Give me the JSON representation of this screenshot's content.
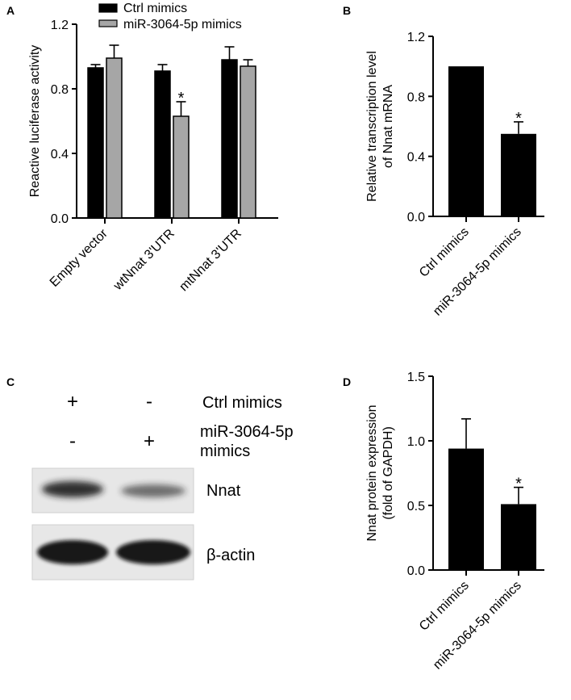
{
  "panels": {
    "A": {
      "label": "A"
    },
    "B": {
      "label": "B"
    },
    "C": {
      "label": "C"
    },
    "D": {
      "label": "D"
    }
  },
  "colors": {
    "ctrl": "#000000",
    "mimic": "#a6a6a6",
    "axis": "#000000"
  },
  "chart_data": [
    {
      "panel": "A",
      "type": "bar",
      "ylabel": "Reactive luciferase activity",
      "ylim": [
        0,
        1.2
      ],
      "yticks": [
        "0.0",
        "0.4",
        "0.8",
        "1.2"
      ],
      "categories": [
        "Empty vector",
        "wtNnat 3'UTR",
        "mtNnat 3'UTR"
      ],
      "legend_position": "top",
      "series": [
        {
          "name": "Ctrl mimics",
          "color": "#000000",
          "values": [
            0.93,
            0.91,
            0.98
          ],
          "errors": [
            0.02,
            0.04,
            0.08
          ]
        },
        {
          "name": "miR-3064-5p mimics",
          "color": "#a6a6a6",
          "values": [
            0.99,
            0.63,
            0.94
          ],
          "errors": [
            0.08,
            0.09,
            0.04
          ]
        }
      ],
      "annotations": [
        {
          "text": "*",
          "category": "wtNnat 3'UTR",
          "series": 1
        }
      ]
    },
    {
      "panel": "B",
      "type": "bar",
      "ylabel": [
        "Relative transcription level",
        "of Nnat mRNA"
      ],
      "ylim": [
        0,
        1.2
      ],
      "yticks": [
        "0.0",
        "0.4",
        "0.8",
        "1.2"
      ],
      "categories": [
        "Ctrl mimics",
        "miR-3064-5p mimics"
      ],
      "values": [
        1.0,
        0.55
      ],
      "errors": [
        0,
        0.08
      ],
      "annotations": [
        {
          "text": "*",
          "category": "miR-3064-5p mimics"
        }
      ]
    },
    {
      "panel": "D",
      "type": "bar",
      "ylabel": [
        "Nnat protein expression",
        "(fold of GAPDH)"
      ],
      "ylim": [
        0,
        1.5
      ],
      "yticks": [
        "0.0",
        "0.5",
        "1.0",
        "1.5"
      ],
      "categories": [
        "Ctrl mimics",
        "miR-3064-5p mimics"
      ],
      "values": [
        0.94,
        0.51
      ],
      "errors": [
        0.23,
        0.13
      ],
      "annotations": [
        {
          "text": "*",
          "category": "miR-3064-5p mimics"
        }
      ]
    }
  ],
  "blot": {
    "rows": [
      {
        "lane1": "+",
        "lane2": "-",
        "label": "Ctrl mimics"
      },
      {
        "lane1": "-",
        "lane2": "+",
        "label": [
          "miR-3064-5p",
          "mimics"
        ]
      }
    ],
    "bands": [
      {
        "label": "Nnat",
        "lane1_intensity": 0.9,
        "lane2_intensity": 0.6
      },
      {
        "label": "β-actin",
        "lane1_intensity": 0.95,
        "lane2_intensity": 0.95
      }
    ]
  }
}
